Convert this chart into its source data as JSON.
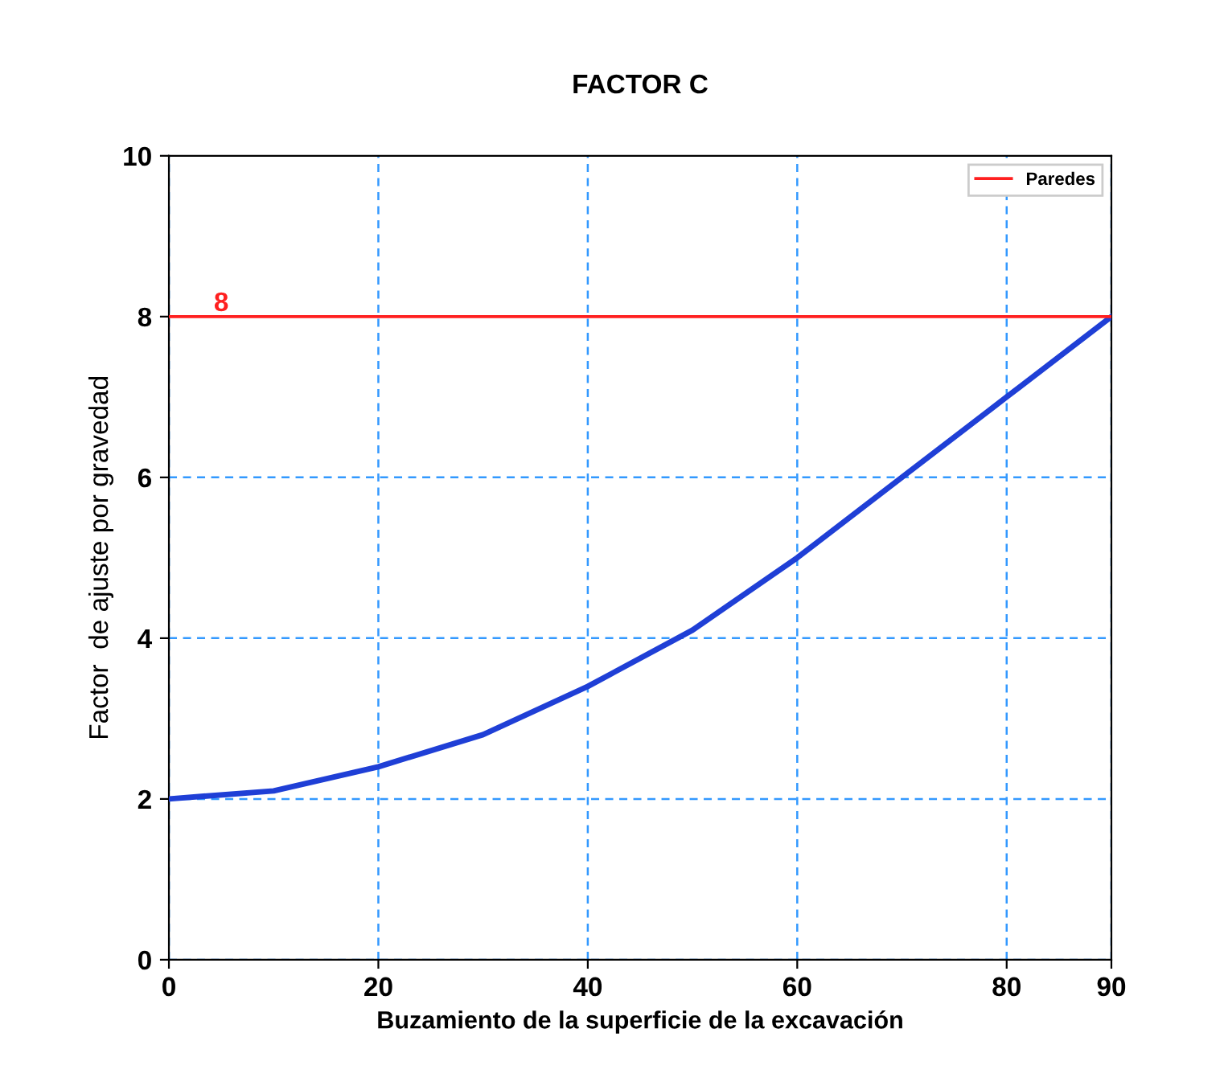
{
  "chart_data": {
    "type": "line",
    "title": "FACTOR C",
    "xlabel": "Buzamiento de la superficie de la excavación",
    "ylabel": "Factor  de ajuste por gravedad",
    "series": [
      {
        "color": "#1f3fd6",
        "x": [
          0,
          10,
          20,
          30,
          40,
          50,
          60,
          70,
          80,
          90
        ],
        "values": [
          2,
          2.1,
          2.4,
          2.8,
          3.4,
          4.1,
          5.0,
          6.0,
          7.0,
          8.0
        ]
      },
      {
        "name": "Paredes",
        "color": "#ff2020",
        "x": [
          0,
          90
        ],
        "values": [
          8,
          8
        ]
      }
    ],
    "annotations": [
      {
        "text": "8",
        "x": 5,
        "y": 8
      }
    ],
    "xlim": [
      0,
      90
    ],
    "xticks": [
      0,
      20,
      40,
      60,
      80,
      90
    ],
    "ylim": [
      0,
      10
    ],
    "yticks": [
      0,
      2,
      4,
      6,
      8,
      10
    ],
    "grid": true,
    "legend": "top right",
    "marker": "none",
    "line_style": "solid"
  }
}
